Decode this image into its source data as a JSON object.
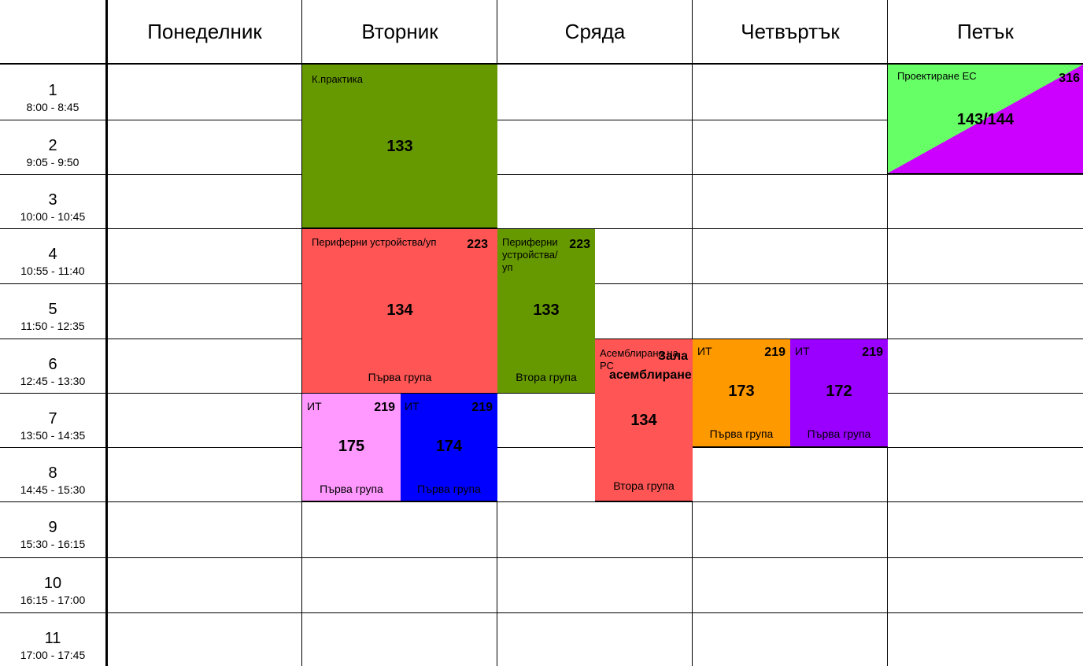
{
  "days": [
    "Понеделник",
    "Вторник",
    "Сряда",
    "Четвъртък",
    "Петък"
  ],
  "slots": [
    {
      "num": "1",
      "time": "8:00 - 8:45"
    },
    {
      "num": "2",
      "time": "9:05 - 9:50"
    },
    {
      "num": "3",
      "time": "10:00 - 10:45"
    },
    {
      "num": "4",
      "time": "10:55 - 11:40"
    },
    {
      "num": "5",
      "time": "11:50 - 12:35"
    },
    {
      "num": "6",
      "time": "12:45 - 13:30"
    },
    {
      "num": "7",
      "time": "13:50 - 14:35"
    },
    {
      "num": "8",
      "time": "14:45 - 15:30"
    },
    {
      "num": "9",
      "time": "15:30 - 16:15"
    },
    {
      "num": "10",
      "time": "16:15 - 17:00"
    },
    {
      "num": "11",
      "time": "17:00 - 17:45"
    }
  ],
  "blocks": {
    "tue_kpraktika": {
      "title": "К.практика",
      "code": "133",
      "color": "#669900"
    },
    "tue_periferni": {
      "title": "Периферни устройства/уп",
      "room": "223",
      "code": "134",
      "group": "Първа група",
      "color": "#ff5555"
    },
    "wed_periferni": {
      "title": "Периферни устройства/уп",
      "room": "223",
      "code": "133",
      "group": "Втора група",
      "color": "#669900"
    },
    "tue_it_175": {
      "title": "ИТ",
      "room": "219",
      "code": "175",
      "group": "Първа група",
      "color": "#ff99ff"
    },
    "tue_it_174": {
      "title": "ИТ",
      "room": "219",
      "code": "174",
      "group": "Първа група",
      "color": "#0000ff"
    },
    "wed_asembl": {
      "title": "Асемблиране на РС",
      "room": "Зала асемблиране",
      "code": "134",
      "group": "Втора група",
      "color": "#ff5555"
    },
    "thu_it_173": {
      "title": "ИТ",
      "room": "219",
      "code": "173",
      "group": "Първа група",
      "color": "#ff9900"
    },
    "thu_it_172": {
      "title": "ИТ",
      "room": "219",
      "code": "172",
      "group": "Първа група",
      "color": "#9900ff"
    },
    "fri_proekt": {
      "title": "Проектиране ЕС",
      "room": "316",
      "code": "143/144",
      "color_a": "#66ff66",
      "color_b": "#cc00ff"
    }
  }
}
